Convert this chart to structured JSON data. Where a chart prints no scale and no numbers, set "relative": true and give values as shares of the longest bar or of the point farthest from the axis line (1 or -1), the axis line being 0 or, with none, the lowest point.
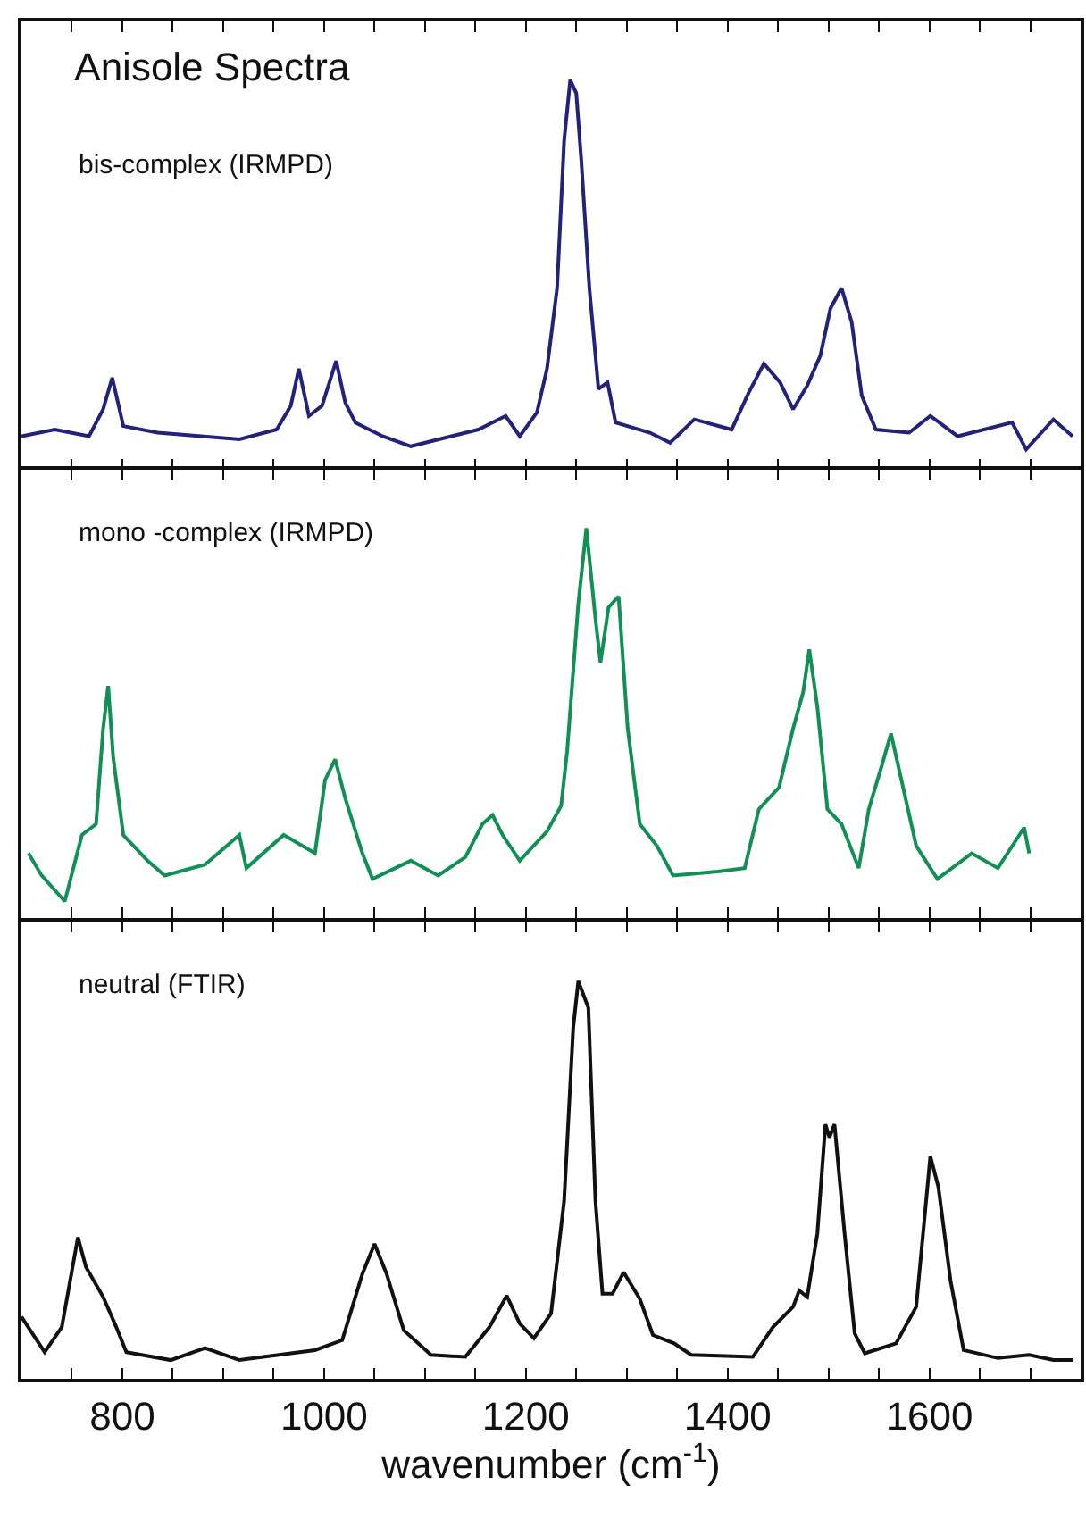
{
  "chart_data": [
    {
      "type": "line",
      "title": "Anisole Spectra",
      "relative": true,
      "tick_labels": false,
      "xlim": [
        700,
        1750
      ],
      "xticks": [
        {
          "value": 750,
          "label": null
        },
        800,
        {
          "value": 850,
          "label": null
        },
        {
          "value": 900,
          "label": null
        },
        {
          "value": 950,
          "label": null
        },
        1000,
        {
          "value": 1050,
          "label": null
        },
        {
          "value": 1100,
          "label": null
        },
        {
          "value": 1150,
          "label": null
        },
        1200,
        {
          "value": 1250,
          "label": null
        },
        {
          "value": 1300,
          "label": null
        },
        {
          "value": 1350,
          "label": null
        },
        1400,
        {
          "value": 1450,
          "label": null
        },
        {
          "value": 1500,
          "label": null
        },
        {
          "value": 1550,
          "label": null
        },
        1600,
        {
          "value": 1650,
          "label": null
        },
        {
          "value": 1700,
          "label": null
        }
      ],
      "grid": false,
      "legend": false,
      "series": [
        {
          "name": "bis-complex (IRMPD)",
          "color": "#22227a",
          "x": [
            700,
            733,
            767,
            781,
            790,
            801,
            835,
            916,
            953,
            967,
            975,
            985,
            998,
            1012,
            1021,
            1031,
            1058,
            1086,
            1153,
            1180,
            1194,
            1211,
            1221,
            1231,
            1238,
            1244,
            1250,
            1255,
            1263,
            1272,
            1281,
            1289,
            1323,
            1343,
            1367,
            1404,
            1421,
            1436,
            1452,
            1465,
            1479,
            1492,
            1502,
            1513,
            1523,
            1533,
            1547,
            1580,
            1601,
            1628,
            1682,
            1696,
            1723,
            1742
          ],
          "values": [
            0.086,
            0.103,
            0.086,
            0.155,
            0.236,
            0.112,
            0.095,
            0.078,
            0.103,
            0.164,
            0.259,
            0.138,
            0.164,
            0.279,
            0.172,
            0.121,
            0.086,
            0.06,
            0.103,
            0.138,
            0.086,
            0.147,
            0.259,
            0.466,
            0.845,
            1.0,
            0.966,
            0.793,
            0.466,
            0.207,
            0.224,
            0.121,
            0.095,
            0.069,
            0.129,
            0.103,
            0.198,
            0.272,
            0.224,
            0.155,
            0.216,
            0.293,
            0.414,
            0.466,
            0.379,
            0.19,
            0.103,
            0.095,
            0.138,
            0.086,
            0.121,
            0.052,
            0.129,
            0.086
          ]
        }
      ]
    },
    {
      "type": "line",
      "relative": true,
      "tick_labels": false,
      "xlim": [
        700,
        1750
      ],
      "xticks": [
        {
          "value": 750,
          "label": null
        },
        800,
        {
          "value": 850,
          "label": null
        },
        {
          "value": 900,
          "label": null
        },
        {
          "value": 950,
          "label": null
        },
        1000,
        {
          "value": 1050,
          "label": null
        },
        {
          "value": 1100,
          "label": null
        },
        {
          "value": 1150,
          "label": null
        },
        1200,
        {
          "value": 1250,
          "label": null
        },
        {
          "value": 1300,
          "label": null
        },
        {
          "value": 1350,
          "label": null
        },
        1400,
        {
          "value": 1450,
          "label": null
        },
        {
          "value": 1500,
          "label": null
        },
        {
          "value": 1550,
          "label": null
        },
        1600,
        {
          "value": 1650,
          "label": null
        },
        {
          "value": 1700,
          "label": null
        }
      ],
      "grid": false,
      "legend": false,
      "series": [
        {
          "name": "mono -complex (IRMPD)",
          "color": "#119055",
          "x": [
            707,
            720,
            743,
            760,
            774,
            781,
            786,
            791,
            801,
            825,
            842,
            882,
            916,
            923,
            960,
            991,
            1001,
            1011,
            1021,
            1038,
            1048,
            1086,
            1113,
            1140,
            1157,
            1167,
            1177,
            1194,
            1221,
            1235,
            1241,
            1252,
            1260,
            1269,
            1274,
            1282,
            1292,
            1301,
            1313,
            1330,
            1346,
            1390,
            1417,
            1431,
            1451,
            1465,
            1475,
            1481,
            1489,
            1499,
            1513,
            1530,
            1540,
            1553,
            1562,
            1574,
            1587,
            1608,
            1642,
            1668,
            1694,
            1699
          ],
          "values": [
            0.166,
            0.109,
            0.043,
            0.213,
            0.241,
            0.486,
            0.595,
            0.411,
            0.213,
            0.147,
            0.109,
            0.137,
            0.213,
            0.128,
            0.213,
            0.166,
            0.354,
            0.407,
            0.307,
            0.166,
            0.1,
            0.147,
            0.109,
            0.156,
            0.241,
            0.264,
            0.213,
            0.147,
            0.222,
            0.288,
            0.429,
            0.806,
            1.0,
            0.768,
            0.655,
            0.797,
            0.825,
            0.486,
            0.241,
            0.185,
            0.109,
            0.119,
            0.128,
            0.279,
            0.335,
            0.486,
            0.58,
            0.689,
            0.542,
            0.279,
            0.241,
            0.128,
            0.279,
            0.392,
            0.473,
            0.335,
            0.185,
            0.1,
            0.166,
            0.128,
            0.232,
            0.166
          ]
        }
      ]
    },
    {
      "type": "line",
      "relative": true,
      "tick_labels": "x",
      "xlabel": "wavenumber (cm$^{-1}$)",
      "xlim": [
        700,
        1750
      ],
      "xticks": [
        {
          "value": 750,
          "label": null
        },
        800,
        {
          "value": 850,
          "label": null
        },
        {
          "value": 900,
          "label": null
        },
        {
          "value": 950,
          "label": null
        },
        1000,
        {
          "value": 1050,
          "label": null
        },
        {
          "value": 1100,
          "label": null
        },
        {
          "value": 1150,
          "label": null
        },
        1200,
        {
          "value": 1250,
          "label": null
        },
        {
          "value": 1300,
          "label": null
        },
        {
          "value": 1350,
          "label": null
        },
        1400,
        {
          "value": 1450,
          "label": null
        },
        {
          "value": 1500,
          "label": null
        },
        {
          "value": 1550,
          "label": null
        },
        1600,
        {
          "value": 1650,
          "label": null
        },
        {
          "value": 1700,
          "label": null
        }
      ],
      "grid": false,
      "legend": false,
      "series": [
        {
          "name": "neutral (FTIR)",
          "color": "#111111",
          "x": [
            700,
            723,
            740,
            756,
            764,
            781,
            794,
            804,
            848,
            882,
            916,
            991,
            1018,
            1038,
            1050,
            1062,
            1079,
            1106,
            1140,
            1164,
            1181,
            1194,
            1208,
            1225,
            1238,
            1247,
            1252,
            1262,
            1269,
            1276,
            1286,
            1297,
            1313,
            1326,
            1347,
            1364,
            1425,
            1445,
            1465,
            1471,
            1479,
            1489,
            1497,
            1501,
            1506,
            1516,
            1526,
            1536,
            1567,
            1587,
            1601,
            1609,
            1621,
            1634,
            1668,
            1699,
            1723,
            1742
          ],
          "values": [
            0.156,
            0.067,
            0.13,
            0.356,
            0.281,
            0.206,
            0.13,
            0.067,
            0.047,
            0.077,
            0.047,
            0.072,
            0.097,
            0.264,
            0.339,
            0.264,
            0.122,
            0.06,
            0.055,
            0.13,
            0.209,
            0.139,
            0.102,
            0.164,
            0.448,
            0.883,
            1.0,
            0.933,
            0.448,
            0.214,
            0.214,
            0.268,
            0.201,
            0.11,
            0.089,
            0.06,
            0.055,
            0.13,
            0.181,
            0.222,
            0.206,
            0.365,
            0.64,
            0.607,
            0.64,
            0.365,
            0.114,
            0.064,
            0.089,
            0.181,
            0.56,
            0.482,
            0.247,
            0.072,
            0.052,
            0.06,
            0.047,
            0.047
          ]
        }
      ]
    }
  ]
}
